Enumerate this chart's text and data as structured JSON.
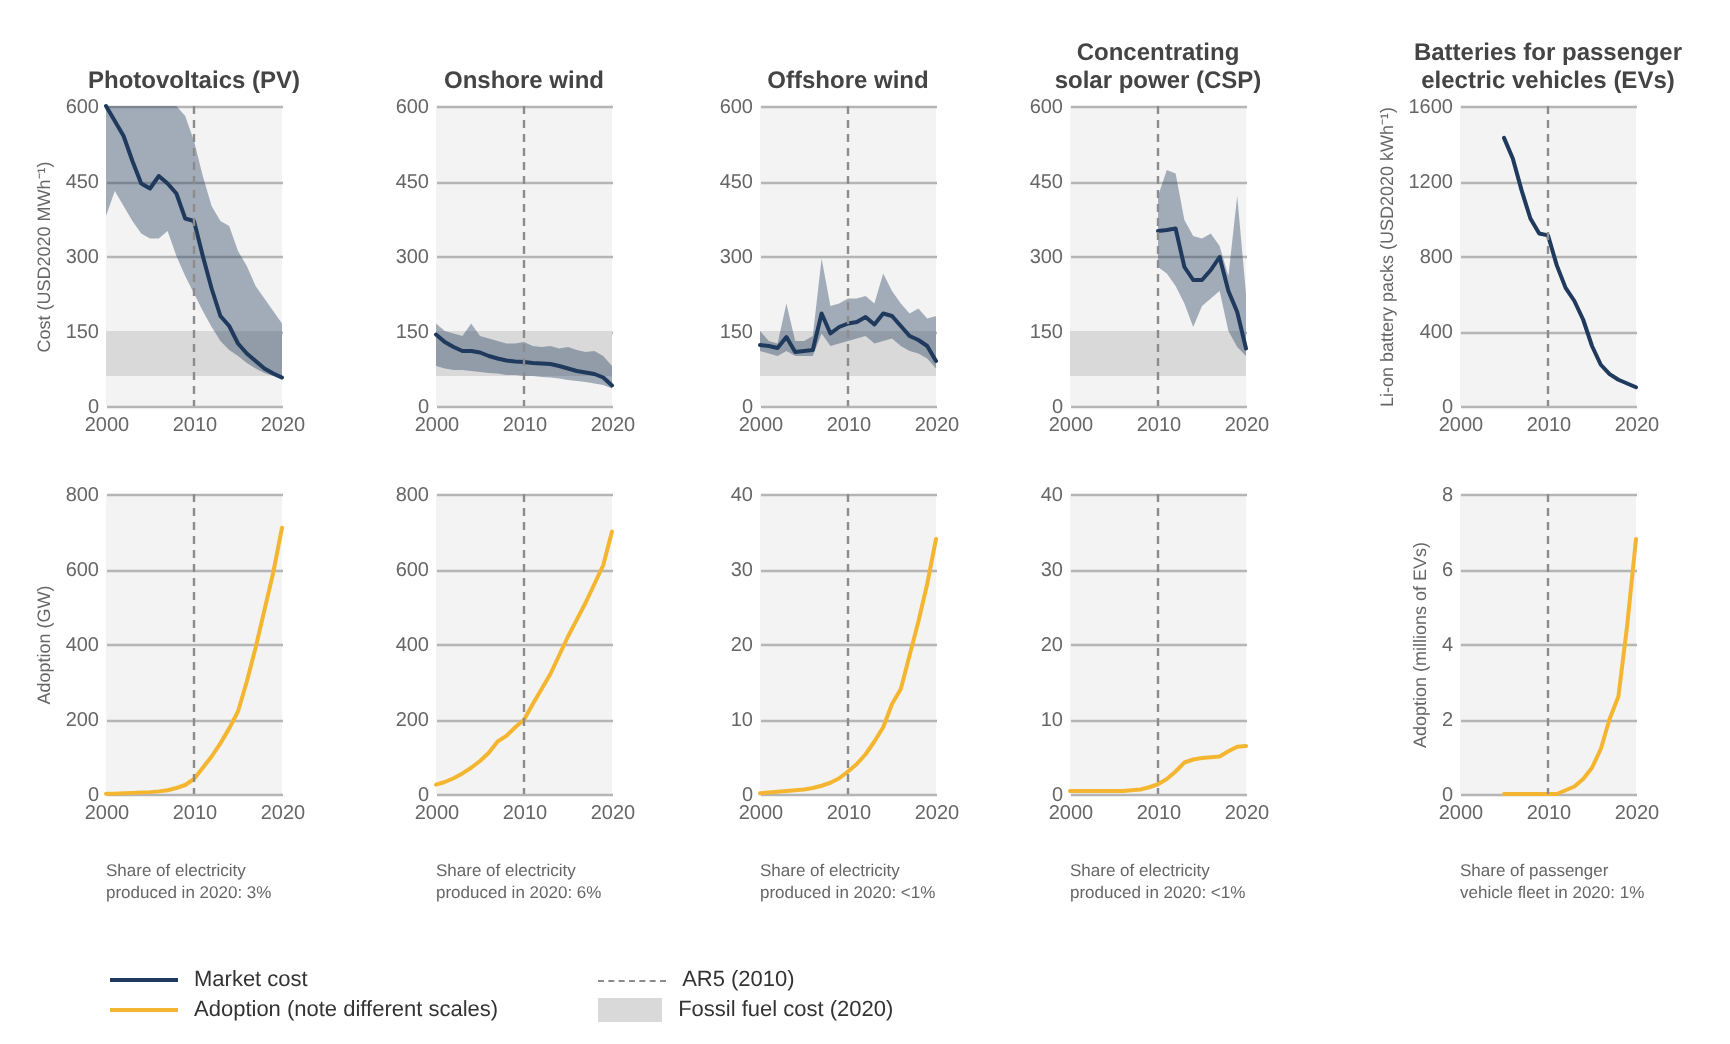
{
  "chart_data": [
    {
      "type": "line",
      "title": "Photovoltaics (PV)",
      "ylabel": "Cost (USD2020 MWh⁻¹)",
      "legend": "bottom",
      "grid": "y",
      "xlim": [
        2000,
        2020
      ],
      "xticks": [
        2000,
        2010,
        2020
      ],
      "ylim": [
        0,
        600
      ],
      "yticks": [
        0,
        150,
        300,
        450,
        600
      ],
      "x": [
        2000,
        2001,
        2002,
        2003,
        2004,
        2005,
        2006,
        2007,
        2008,
        2009,
        2010,
        2011,
        2012,
        2013,
        2014,
        2015,
        2016,
        2017,
        2018,
        2019,
        2020
      ],
      "series": [
        {
          "name": "Market cost",
          "color": "#1f3a5c",
          "values": [
            600,
            570,
            540,
            490,
            445,
            435,
            460,
            445,
            425,
            375,
            370,
            300,
            235,
            180,
            160,
            125,
            105,
            90,
            75,
            65,
            57
          ],
          "lower": [
            380,
            430,
            400,
            370,
            345,
            335,
            335,
            350,
            300,
            260,
            225,
            190,
            158,
            130,
            112,
            100,
            86,
            75,
            66,
            60,
            52
          ],
          "upper": [
            600,
            600,
            600,
            600,
            600,
            600,
            600,
            600,
            600,
            580,
            530,
            460,
            400,
            370,
            360,
            310,
            280,
            240,
            215,
            190,
            165
          ]
        }
      ],
      "ref_lines": [
        {
          "axis": "x",
          "value": 2010,
          "label": "AR5 (2010)",
          "color": "#8c8c8c",
          "line_style": "dashed"
        }
      ],
      "bands": [
        {
          "axis": "y",
          "from": 60,
          "to": 150,
          "label": "Fossil fuel cost (2020)",
          "color": "#d9d9d9"
        }
      ]
    },
    {
      "type": "line",
      "title": "Onshore wind",
      "legend": "bottom",
      "grid": "y",
      "xlim": [
        2000,
        2020
      ],
      "xticks": [
        2000,
        2010,
        2020
      ],
      "ylim": [
        0,
        600
      ],
      "yticks": [
        0,
        150,
        300,
        450,
        600
      ],
      "x": [
        2000,
        2001,
        2002,
        2003,
        2004,
        2005,
        2006,
        2007,
        2008,
        2009,
        2010,
        2011,
        2012,
        2013,
        2014,
        2015,
        2016,
        2017,
        2018,
        2019,
        2020
      ],
      "series": [
        {
          "name": "Market cost",
          "color": "#1f3a5c",
          "values": [
            143,
            128,
            118,
            110,
            110,
            107,
            100,
            95,
            91,
            89,
            88,
            86,
            85,
            84,
            80,
            75,
            70,
            67,
            64,
            57,
            41
          ],
          "lower": [
            80,
            75,
            72,
            72,
            70,
            68,
            66,
            65,
            62,
            62,
            60,
            60,
            58,
            57,
            55,
            52,
            50,
            48,
            45,
            42,
            35
          ],
          "upper": [
            165,
            150,
            145,
            140,
            165,
            140,
            135,
            130,
            125,
            125,
            128,
            120,
            118,
            120,
            115,
            118,
            112,
            108,
            110,
            100,
            80
          ]
        }
      ],
      "ref_lines": [
        {
          "axis": "x",
          "value": 2010,
          "color": "#8c8c8c",
          "line_style": "dashed"
        }
      ],
      "bands": [
        {
          "axis": "y",
          "from": 60,
          "to": 150,
          "color": "#d9d9d9"
        }
      ]
    },
    {
      "type": "line",
      "title": "Offshore wind",
      "legend": "bottom",
      "grid": "y",
      "xlim": [
        2000,
        2020
      ],
      "xticks": [
        2000,
        2010,
        2020
      ],
      "ylim": [
        0,
        600
      ],
      "yticks": [
        0,
        150,
        300,
        450,
        600
      ],
      "x": [
        2000,
        2001,
        2002,
        2003,
        2004,
        2005,
        2006,
        2007,
        2008,
        2009,
        2010,
        2011,
        2012,
        2013,
        2014,
        2015,
        2016,
        2017,
        2018,
        2019,
        2020
      ],
      "series": [
        {
          "name": "Market cost",
          "color": "#1f3a5c",
          "values": [
            122,
            120,
            116,
            138,
            108,
            110,
            112,
            185,
            145,
            158,
            165,
            168,
            178,
            163,
            185,
            180,
            160,
            140,
            132,
            120,
            90
          ],
          "lower": [
            110,
            105,
            100,
            110,
            100,
            100,
            100,
            145,
            120,
            125,
            130,
            135,
            140,
            125,
            130,
            135,
            120,
            110,
            105,
            95,
            75
          ],
          "upper": [
            150,
            130,
            125,
            205,
            130,
            130,
            140,
            295,
            200,
            205,
            215,
            215,
            220,
            205,
            265,
            230,
            205,
            185,
            195,
            175,
            180
          ]
        }
      ],
      "ref_lines": [
        {
          "axis": "x",
          "value": 2010,
          "color": "#8c8c8c",
          "line_style": "dashed"
        }
      ],
      "bands": [
        {
          "axis": "y",
          "from": 60,
          "to": 150,
          "color": "#d9d9d9"
        }
      ]
    },
    {
      "type": "line",
      "title": "Concentrating solar power (CSP)",
      "legend": "bottom",
      "grid": "y",
      "xlim": [
        2000,
        2020
      ],
      "xticks": [
        2000,
        2010,
        2020
      ],
      "ylim": [
        0,
        600
      ],
      "yticks": [
        0,
        150,
        300,
        450,
        600
      ],
      "x": [
        2010,
        2011,
        2012,
        2013,
        2014,
        2015,
        2016,
        2017,
        2018,
        2019,
        2020
      ],
      "series": [
        {
          "name": "Market cost",
          "color": "#1f3a5c",
          "values": [
            350,
            352,
            355,
            278,
            252,
            252,
            272,
            298,
            230,
            188,
            115
          ],
          "lower": [
            278,
            265,
            240,
            205,
            158,
            200,
            215,
            230,
            150,
            118,
            100
          ],
          "upper": [
            420,
            472,
            465,
            372,
            340,
            335,
            345,
            320,
            260,
            420,
            225
          ]
        }
      ],
      "ref_lines": [
        {
          "axis": "x",
          "value": 2010,
          "color": "#8c8c8c",
          "line_style": "dashed"
        }
      ],
      "bands": [
        {
          "axis": "y",
          "from": 60,
          "to": 150,
          "color": "#d9d9d9"
        }
      ]
    },
    {
      "type": "line",
      "title": "Batteries for passenger electric vehicles (EVs)",
      "ylabel": "Li-on battery packs (USD2020 kWh⁻¹)",
      "legend": "bottom",
      "grid": "y",
      "xlim": [
        2000,
        2020
      ],
      "xticks": [
        2000,
        2010,
        2020
      ],
      "ylim": [
        0,
        1600
      ],
      "yticks": [
        0,
        400,
        800,
        1200,
        1600
      ],
      "x": [
        2005,
        2006,
        2007,
        2008,
        2009,
        2010,
        2011,
        2012,
        2013,
        2014,
        2015,
        2016,
        2017,
        2018,
        2019,
        2020
      ],
      "series": [
        {
          "name": "Market cost",
          "color": "#1f3a5c",
          "values": [
            1430,
            1320,
            1150,
            1000,
            920,
            910,
            750,
            630,
            560,
            460,
            320,
            220,
            170,
            140,
            120,
            100
          ]
        }
      ],
      "ref_lines": [
        {
          "axis": "x",
          "value": 2010,
          "color": "#8c8c8c",
          "line_style": "dashed"
        }
      ]
    },
    {
      "type": "line",
      "ylabel": "Adoption (GW)",
      "legend": "bottom",
      "grid": "y",
      "xlim": [
        2000,
        2020
      ],
      "xticks": [
        2000,
        2010,
        2020
      ],
      "ylim": [
        0,
        800
      ],
      "yticks": [
        0,
        200,
        400,
        600,
        800
      ],
      "x": [
        2000,
        2001,
        2002,
        2003,
        2004,
        2005,
        2006,
        2007,
        2008,
        2009,
        2010,
        2011,
        2012,
        2013,
        2014,
        2015,
        2016,
        2017,
        2018,
        2019,
        2020
      ],
      "series": [
        {
          "name": "Adoption (note different scales)",
          "color": "#f4b630",
          "values": [
            1,
            1,
            2,
            3,
            4,
            5,
            7,
            10,
            16,
            24,
            40,
            70,
            100,
            135,
            175,
            220,
            300,
            390,
            490,
            590,
            710
          ]
        }
      ],
      "ref_lines": [
        {
          "axis": "x",
          "value": 2010,
          "color": "#8c8c8c",
          "line_style": "dashed"
        }
      ],
      "annotations": [
        "Share of electricity produced in 2020: 3%"
      ]
    },
    {
      "type": "line",
      "legend": "bottom",
      "grid": "y",
      "xlim": [
        2000,
        2020
      ],
      "xticks": [
        2000,
        2010,
        2020
      ],
      "ylim": [
        0,
        800
      ],
      "yticks": [
        0,
        200,
        400,
        600,
        800
      ],
      "x": [
        2000,
        2001,
        2002,
        2003,
        2004,
        2005,
        2006,
        2007,
        2008,
        2009,
        2010,
        2011,
        2012,
        2013,
        2014,
        2015,
        2016,
        2017,
        2018,
        2019,
        2020
      ],
      "series": [
        {
          "name": "Adoption (note different scales)",
          "color": "#f4b630",
          "values": [
            25,
            32,
            42,
            55,
            70,
            88,
            110,
            140,
            155,
            178,
            198,
            240,
            280,
            320,
            370,
            420,
            465,
            510,
            560,
            610,
            700
          ]
        }
      ],
      "ref_lines": [
        {
          "axis": "x",
          "value": 2010,
          "color": "#8c8c8c",
          "line_style": "dashed"
        }
      ],
      "annotations": [
        "Share of electricity produced in 2020: 6%"
      ]
    },
    {
      "type": "line",
      "legend": "bottom",
      "grid": "y",
      "xlim": [
        2000,
        2020
      ],
      "xticks": [
        2000,
        2010,
        2020
      ],
      "ylim": [
        0,
        40
      ],
      "yticks": [
        0,
        10,
        20,
        30,
        40
      ],
      "x": [
        2000,
        2001,
        2002,
        2003,
        2004,
        2005,
        2006,
        2007,
        2008,
        2009,
        2010,
        2011,
        2012,
        2013,
        2014,
        2015,
        2016,
        2017,
        2018,
        2019,
        2020
      ],
      "series": [
        {
          "name": "Adoption (note different scales)",
          "color": "#f4b630",
          "values": [
            0.1,
            0.2,
            0.3,
            0.4,
            0.5,
            0.6,
            0.8,
            1.1,
            1.5,
            2.1,
            3,
            4,
            5.3,
            7,
            8.9,
            12,
            14,
            18.5,
            23,
            28,
            34
          ]
        }
      ],
      "ref_lines": [
        {
          "axis": "x",
          "value": 2010,
          "color": "#8c8c8c",
          "line_style": "dashed"
        }
      ],
      "annotations": [
        "Share of electricity produced in 2020: <1%"
      ]
    },
    {
      "type": "line",
      "legend": "bottom",
      "grid": "y",
      "xlim": [
        2000,
        2020
      ],
      "xticks": [
        2000,
        2010,
        2020
      ],
      "ylim": [
        0,
        40
      ],
      "yticks": [
        0,
        10,
        20,
        30,
        40
      ],
      "x": [
        2000,
        2001,
        2002,
        2003,
        2004,
        2005,
        2006,
        2007,
        2008,
        2009,
        2010,
        2011,
        2012,
        2013,
        2014,
        2015,
        2016,
        2017,
        2018,
        2019,
        2020
      ],
      "series": [
        {
          "name": "Adoption (note different scales)",
          "color": "#f4b630",
          "values": [
            0.4,
            0.4,
            0.4,
            0.4,
            0.4,
            0.4,
            0.4,
            0.5,
            0.6,
            0.9,
            1.3,
            2,
            3,
            4.2,
            4.6,
            4.8,
            4.9,
            5,
            5.7,
            6.3,
            6.4
          ]
        }
      ],
      "ref_lines": [
        {
          "axis": "x",
          "value": 2010,
          "color": "#8c8c8c",
          "line_style": "dashed"
        }
      ],
      "annotations": [
        "Share of electricity produced in 2020: <1%"
      ]
    },
    {
      "type": "line",
      "ylabel": "Adoption (millions of EVs)",
      "legend": "bottom",
      "grid": "y",
      "xlim": [
        2000,
        2020
      ],
      "xticks": [
        2000,
        2010,
        2020
      ],
      "ylim": [
        0,
        8
      ],
      "yticks": [
        0,
        2,
        4,
        6,
        8
      ],
      "x": [
        2005,
        2006,
        2007,
        2008,
        2009,
        2010,
        2011,
        2012,
        2013,
        2014,
        2015,
        2016,
        2017,
        2018,
        2019,
        2020
      ],
      "series": [
        {
          "name": "Adoption (note different scales)",
          "color": "#f4b630",
          "values": [
            0,
            0,
            0,
            0,
            0,
            0,
            0,
            0.1,
            0.2,
            0.4,
            0.7,
            1.2,
            2,
            2.6,
            4.5,
            6.8
          ]
        }
      ],
      "ref_lines": [
        {
          "axis": "x",
          "value": 2010,
          "color": "#8c8c8c",
          "line_style": "dashed"
        }
      ],
      "annotations": [
        "Share of passenger vehicle fleet in 2020: 1%"
      ]
    }
  ]
}
